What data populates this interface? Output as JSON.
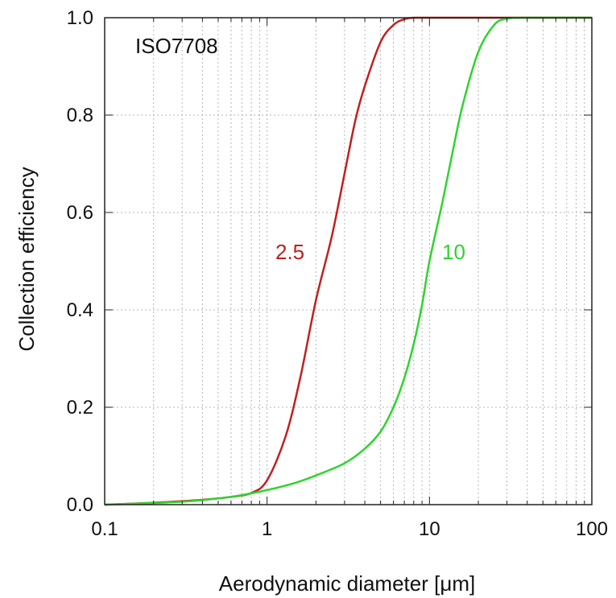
{
  "chart_data": {
    "type": "line",
    "title": "",
    "xlabel": "Aerodynamic diameter [μm]",
    "ylabel": "Collection efficiency",
    "xscale": "log",
    "xlim": [
      0.1,
      100
    ],
    "ylim": [
      0,
      1.0
    ],
    "grid": true,
    "xticks": [
      0.1,
      1,
      10,
      100
    ],
    "xtick_labels": [
      "0.1",
      "1",
      "10",
      "100"
    ],
    "yticks": [
      0,
      0.2,
      0.4,
      0.6,
      0.8,
      1.0
    ],
    "ytick_labels": [
      "0.0",
      "0.2",
      "0.4",
      "0.6",
      "0.8",
      "1.0"
    ],
    "annotation": "ISO7708",
    "series": [
      {
        "name": "2.5",
        "color": "#c0201e",
        "x": [
          0.1,
          0.2,
          0.4,
          0.6,
          0.8,
          1.0,
          1.3,
          1.6,
          2.0,
          2.5,
          3.0,
          3.5,
          4.0,
          5.0,
          6.0,
          7.0,
          8.0,
          10,
          20,
          100
        ],
        "y": [
          0.0,
          0.004,
          0.01,
          0.016,
          0.024,
          0.05,
          0.14,
          0.26,
          0.42,
          0.55,
          0.68,
          0.79,
          0.86,
          0.95,
          0.985,
          0.997,
          1.0,
          1.0,
          1.0,
          1.0
        ]
      },
      {
        "name": "10",
        "color": "#2fd42f",
        "x": [
          0.1,
          0.3,
          0.6,
          1.0,
          1.5,
          2.0,
          3.0,
          4.0,
          5.0,
          6.0,
          7.0,
          8.0,
          9.0,
          10,
          12,
          14,
          16,
          20,
          25,
          30,
          40,
          100
        ],
        "y": [
          0.0,
          0.006,
          0.016,
          0.03,
          0.045,
          0.06,
          0.085,
          0.115,
          0.15,
          0.2,
          0.26,
          0.33,
          0.41,
          0.5,
          0.62,
          0.73,
          0.82,
          0.93,
          0.985,
          0.998,
          1.0,
          1.0
        ]
      }
    ]
  }
}
